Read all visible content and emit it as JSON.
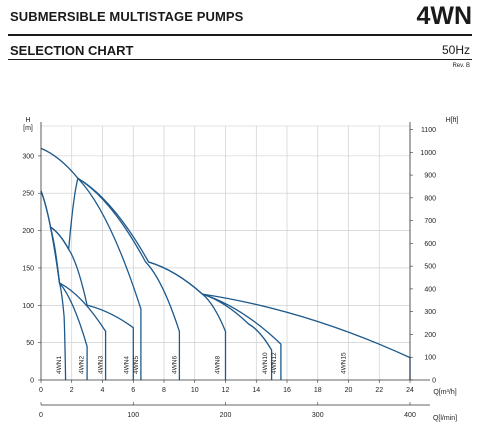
{
  "header": {
    "title": "SUBMERSIBLE MULTISTAGE PUMPS",
    "model": "4WN",
    "subtitle": "SELECTION CHART",
    "frequency": "50Hz",
    "revision": "Rev. B"
  },
  "chart_data": {
    "type": "line",
    "grid": true,
    "xlabel": "Q[m³/h]",
    "x2label": "Q[l/min]",
    "ylabel": "H\n[m]",
    "y2label": "H[ft]",
    "xlim": [
      0,
      24
    ],
    "ylim": [
      0,
      340
    ],
    "x_ticks": [
      0,
      2,
      4,
      6,
      8,
      10,
      12,
      14,
      16,
      18,
      20,
      22,
      24
    ],
    "x_tick_labels": [
      "0",
      "2",
      "4",
      "6",
      "8",
      "10",
      "12",
      "14",
      "16",
      "18",
      "20",
      "22",
      "24"
    ],
    "x2_ticks": [
      0,
      100,
      200,
      300,
      400
    ],
    "y_ticks": [
      0,
      50,
      100,
      150,
      200,
      250,
      300
    ],
    "y2_ticks": [
      0,
      100,
      200,
      300,
      400,
      500,
      600,
      700,
      800,
      900,
      1000,
      1100
    ],
    "series": [
      {
        "name": "4WN1",
        "label_x": 1.3,
        "points": [
          [
            0,
            253
          ],
          [
            1.2,
            130
          ],
          [
            1.5,
            85
          ],
          [
            1.6,
            0
          ]
        ]
      },
      {
        "name": "4WN2",
        "label_x": 2.75,
        "points": [
          [
            0,
            253
          ],
          [
            1.2,
            130
          ],
          [
            3.0,
            45
          ],
          [
            3.0,
            0
          ]
        ]
      },
      {
        "name": "4WN3",
        "label_x": 4.0,
        "points": [
          [
            0.6,
            205
          ],
          [
            1.2,
            130
          ],
          [
            4.2,
            65
          ],
          [
            4.2,
            0
          ]
        ]
      },
      {
        "name": "4WN4",
        "label_x": 5.7,
        "points": [
          [
            0.6,
            205
          ],
          [
            1.8,
            175
          ],
          [
            3.0,
            100
          ],
          [
            6.0,
            70
          ],
          [
            6.0,
            0
          ]
        ]
      },
      {
        "name": "4WN5",
        "label_x": 6.3,
        "points": [
          [
            0.6,
            205
          ],
          [
            1.8,
            175
          ],
          [
            2.4,
            270
          ],
          [
            6.5,
            95
          ],
          [
            6.5,
            0
          ]
        ]
      },
      {
        "name": "4WN6",
        "label_x": 8.8,
        "points": [
          [
            0,
            310
          ],
          [
            2.4,
            270
          ],
          [
            6.8,
            158
          ],
          [
            9.0,
            65
          ],
          [
            9.0,
            0
          ]
        ]
      },
      {
        "name": "4WN8",
        "label_x": 11.6,
        "points": [
          [
            2.4,
            270
          ],
          [
            7.0,
            158
          ],
          [
            10.5,
            115
          ],
          [
            12.0,
            65
          ],
          [
            12.0,
            0
          ]
        ]
      },
      {
        "name": "4WN10",
        "label_x": 14.7,
        "points": [
          [
            7.0,
            158
          ],
          [
            10.5,
            115
          ],
          [
            13.5,
            75
          ],
          [
            15.0,
            40
          ],
          [
            15.0,
            0
          ]
        ]
      },
      {
        "name": "4WN12",
        "label_x": 15.3,
        "points": [
          [
            10.5,
            115
          ],
          [
            15.6,
            48
          ],
          [
            15.6,
            0
          ]
        ]
      },
      {
        "name": "4WN15",
        "label_x": 19.8,
        "points": [
          [
            10.5,
            115
          ],
          [
            24.0,
            30
          ],
          [
            24.0,
            0
          ]
        ]
      }
    ]
  }
}
